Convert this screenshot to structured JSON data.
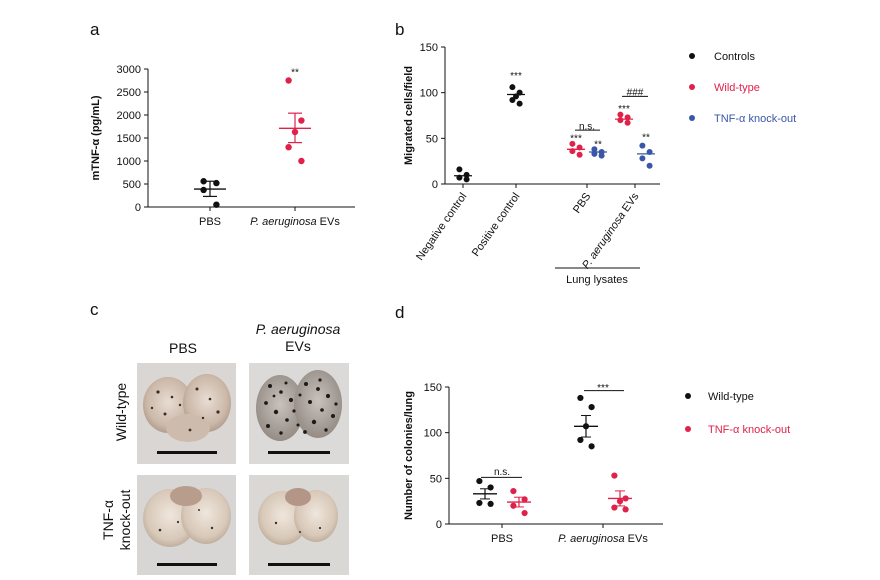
{
  "panels": {
    "a": "a",
    "b": "b",
    "c": "c",
    "d": "d"
  },
  "colors": {
    "controls": "#111111",
    "wild_type": "#e0214a",
    "knockout": "#3a56a8",
    "axis": "#111111"
  },
  "chart_data": [
    {
      "panel": "a",
      "type": "scatter",
      "ylabel": "mTNF-α (pg/mL)",
      "ylim": [
        0,
        3000
      ],
      "yticks": [
        0,
        500,
        1000,
        1500,
        2000,
        2500,
        3000
      ],
      "categories": [
        "PBS",
        "P. aeruginosa EVs"
      ],
      "category_italic": [
        "",
        "P. aeruginosa"
      ],
      "category_rest": [
        "PBS",
        " EVs"
      ],
      "series": [
        {
          "color": "#111111",
          "category": 0,
          "points": [
            560,
            520,
            370,
            50
          ],
          "mean": 390,
          "sem": [
            230,
            560
          ]
        },
        {
          "color": "#e0214a",
          "category": 1,
          "points": [
            2750,
            1880,
            1630,
            1300,
            1000
          ],
          "mean": 1710,
          "sem": [
            1400,
            2040
          ]
        }
      ],
      "annotations": [
        {
          "category": 1,
          "y": 2950,
          "text": "**"
        }
      ]
    },
    {
      "panel": "b",
      "type": "scatter",
      "ylabel": "Migrated cells/field",
      "ylim": [
        0,
        150
      ],
      "yticks": [
        0,
        50,
        100,
        150
      ],
      "categories": [
        "Negative control",
        "Positive control",
        "PBS",
        "P. aeruginosa EVs"
      ],
      "group_label": "Lung lysates",
      "legend": [
        "Controls",
        "Wild-type",
        "TNF-α knock-out"
      ],
      "series": [
        {
          "name": "Controls",
          "color": "#111111",
          "groups": [
            {
              "category": 0,
              "points": [
                16,
                10,
                7,
                5
              ],
              "mean": 9
            },
            {
              "category": 1,
              "points": [
                106,
                100,
                96,
                92,
                88
              ],
              "mean": 98
            }
          ]
        },
        {
          "name": "Wild-type",
          "color": "#e0214a",
          "groups": [
            {
              "category": 2,
              "points": [
                44,
                40,
                36,
                32
              ],
              "mean": 38
            },
            {
              "category": 3,
              "points": [
                76,
                73,
                70,
                67
              ],
              "mean": 71
            }
          ]
        },
        {
          "name": "TNF-α knock-out",
          "color": "#3a56a8",
          "groups": [
            {
              "category": 2,
              "points": [
                38,
                35,
                33,
                31
              ],
              "mean": 35
            },
            {
              "category": 3,
              "points": [
                42,
                35,
                28,
                20
              ],
              "mean": 33
            }
          ]
        }
      ],
      "annotations": [
        {
          "x": 1,
          "y": 118,
          "text": "***"
        },
        {
          "x": 1.83,
          "y": 50,
          "text": "***"
        },
        {
          "x": 2.17,
          "y": 43,
          "text": "**"
        },
        {
          "x": 2.83,
          "y": 82,
          "text": "***"
        },
        {
          "x": 3.17,
          "y": 51,
          "text": "**"
        },
        {
          "x": 2,
          "y": 63,
          "text": "n.s."
        },
        {
          "x": 3,
          "y": 100,
          "text": "###"
        }
      ]
    },
    {
      "panel": "d",
      "type": "scatter",
      "ylabel": "Number of colonies/lung",
      "ylim": [
        0,
        150
      ],
      "yticks": [
        0,
        50,
        100,
        150
      ],
      "categories": [
        "PBS",
        "P. aeruginosa EVs"
      ],
      "category_italic": [
        "",
        "P. aeruginosa"
      ],
      "category_rest": [
        "PBS",
        " EVs"
      ],
      "legend": [
        "Wild-type",
        "TNF-α knock-out"
      ],
      "series": [
        {
          "name": "Wild-type",
          "color": "#111111",
          "groups": [
            {
              "category": 0,
              "points": [
                47,
                40,
                23,
                22
              ],
              "mean": 33
            },
            {
              "category": 1,
              "points": [
                138,
                128,
                107,
                92,
                85
              ],
              "mean": 107
            }
          ]
        },
        {
          "name": "TNF-α knock-out",
          "color": "#e0214a",
          "groups": [
            {
              "category": 0,
              "points": [
                36,
                27,
                20,
                12
              ],
              "mean": 24
            },
            {
              "category": 1,
              "points": [
                53,
                28,
                25,
                18,
                16
              ],
              "mean": 28
            }
          ]
        }
      ],
      "annotations": [
        {
          "x": 0,
          "y": 57,
          "text": "n.s."
        },
        {
          "x": 1,
          "y": 152,
          "text": "***"
        }
      ]
    }
  ],
  "photos": {
    "col_labels": {
      "pbs": "PBS",
      "evs_italic": "P. aeruginosa",
      "evs_rest": "EVs"
    },
    "row_labels": {
      "wild_type": "Wild-type",
      "ko_line1": "TNF-α",
      "ko_line2": "knock-out"
    }
  }
}
